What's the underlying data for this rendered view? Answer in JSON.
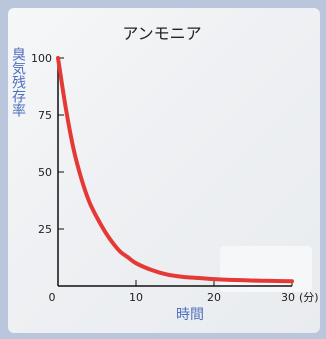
{
  "chart_data": {
    "type": "line",
    "title": "アンモニア",
    "xlabel": "時間",
    "ylabel": "臭気残存率",
    "x_unit": "(分)",
    "xlim": [
      0,
      30
    ],
    "ylim": [
      0,
      100
    ],
    "xticks": [
      0,
      10,
      20,
      30
    ],
    "yticks": [
      25,
      50,
      75,
      100
    ],
    "grid": false,
    "line_color": "#e53935",
    "series": [
      {
        "x": [
          0,
          1,
          2,
          3,
          4,
          5,
          6,
          7,
          8,
          9,
          10,
          12,
          14,
          16,
          18,
          20,
          22,
          24,
          26,
          28,
          30
        ],
        "values": [
          100,
          78,
          60,
          47,
          37,
          30,
          24,
          19,
          15,
          12.5,
          10,
          7,
          5,
          4,
          3.5,
          3,
          2.7,
          2.5,
          2.3,
          2.2,
          2.1
        ]
      }
    ]
  }
}
